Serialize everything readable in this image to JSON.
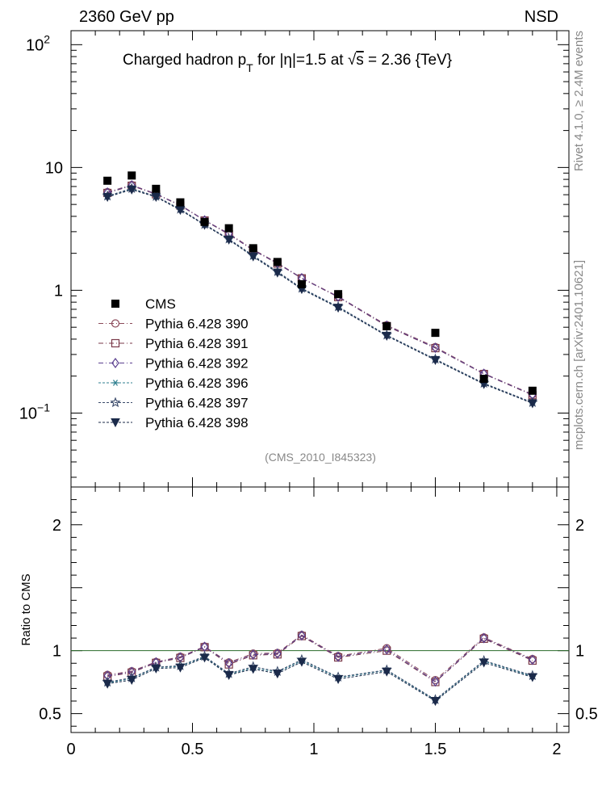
{
  "header": {
    "left": "2360 GeV pp",
    "right": "NSD"
  },
  "side_labels": {
    "rivet": "Rivet 4.1.0, ≥ 2.4M events",
    "mcplots": "mcplots.cern.ch [arXiv:2401.10621]"
  },
  "chart_data": {
    "type": "scatter",
    "title_parts": {
      "prefix": "Charged hadron p",
      "sub": "T",
      "mid": " for |η|=1.5 at ",
      "sqrt": "√",
      "s": "s",
      "suffix": " = 2.36 {TeV}"
    },
    "analysis_label": "(CMS_2010_I845323)",
    "xlim": [
      0,
      2.05
    ],
    "ylim_main": [
      0.025,
      130
    ],
    "ylim_ratio": [
      0.35,
      2.3
    ],
    "yscale_main": "log",
    "ratio_ylabel": "Ratio to CMS",
    "ratio_reference": 1,
    "x_ticks": [
      "0",
      "0.5",
      "1",
      "1.5",
      "2"
    ],
    "x_tick_values": [
      0,
      0.5,
      1,
      1.5,
      2
    ],
    "main_y_ticks": [
      {
        "value": 100,
        "base": "10",
        "exp": "2"
      },
      {
        "value": 10,
        "base": "10",
        "exp": ""
      },
      {
        "value": 1,
        "base": "1",
        "exp": ""
      },
      {
        "value": 0.1,
        "base": "10",
        "exp": "−1"
      }
    ],
    "ratio_y_ticks": [
      "0.5",
      "1",
      "2"
    ],
    "ratio_y_tick_values": [
      0.5,
      1,
      2
    ],
    "x": [
      0.15,
      0.25,
      0.35,
      0.45,
      0.55,
      0.65,
      0.75,
      0.85,
      0.95,
      1.1,
      1.3,
      1.5,
      1.7,
      1.9
    ],
    "data": {
      "name": "CMS",
      "values": [
        7.8,
        8.6,
        6.7,
        5.2,
        3.6,
        3.2,
        2.2,
        1.7,
        1.12,
        0.93,
        0.51,
        0.45,
        0.19,
        0.152
      ]
    },
    "series": [
      {
        "name": "Pythia 6.428 390",
        "color": "#8b4a5a",
        "marker": "circle-open",
        "dash": "6,3,1,3",
        "values": [
          6.3,
          7.2,
          6.1,
          4.95,
          3.72,
          2.9,
          2.15,
          1.67,
          1.26,
          0.89,
          0.52,
          0.345,
          0.21,
          0.142
        ]
      },
      {
        "name": "Pythia 6.428 391",
        "color": "#7a3a4a",
        "marker": "square-open",
        "dash": "6,3,1,3",
        "values": [
          6.2,
          7.1,
          6.05,
          4.9,
          3.7,
          2.85,
          2.12,
          1.65,
          1.25,
          0.88,
          0.51,
          0.338,
          0.208,
          0.14
        ]
      },
      {
        "name": "Pythia 6.428 392",
        "color": "#5a3f8f",
        "marker": "diamond-open",
        "dash": "6,3,1,3",
        "values": [
          6.25,
          7.15,
          6.08,
          4.92,
          3.71,
          2.88,
          2.13,
          1.66,
          1.255,
          0.885,
          0.515,
          0.34,
          0.209,
          0.141
        ]
      },
      {
        "name": "Pythia 6.428 396",
        "color": "#2f7f8f",
        "marker": "asterisk",
        "dash": "3,2",
        "values": [
          5.8,
          6.7,
          5.8,
          4.55,
          3.42,
          2.6,
          1.9,
          1.41,
          1.03,
          0.73,
          0.43,
          0.273,
          0.174,
          0.121
        ]
      },
      {
        "name": "Pythia 6.428 397",
        "color": "#3a4a6a",
        "marker": "star-open",
        "dash": "3,2",
        "values": [
          5.85,
          6.75,
          5.82,
          4.58,
          3.44,
          2.62,
          1.92,
          1.42,
          1.04,
          0.735,
          0.432,
          0.275,
          0.175,
          0.122
        ]
      },
      {
        "name": "Pythia 6.428 398",
        "color": "#1b2a4a",
        "marker": "triangle-down-filled",
        "dash": "3,2",
        "values": [
          5.75,
          6.6,
          5.75,
          4.5,
          3.4,
          2.58,
          1.88,
          1.39,
          1.02,
          0.72,
          0.425,
          0.27,
          0.172,
          0.12
        ]
      }
    ]
  }
}
